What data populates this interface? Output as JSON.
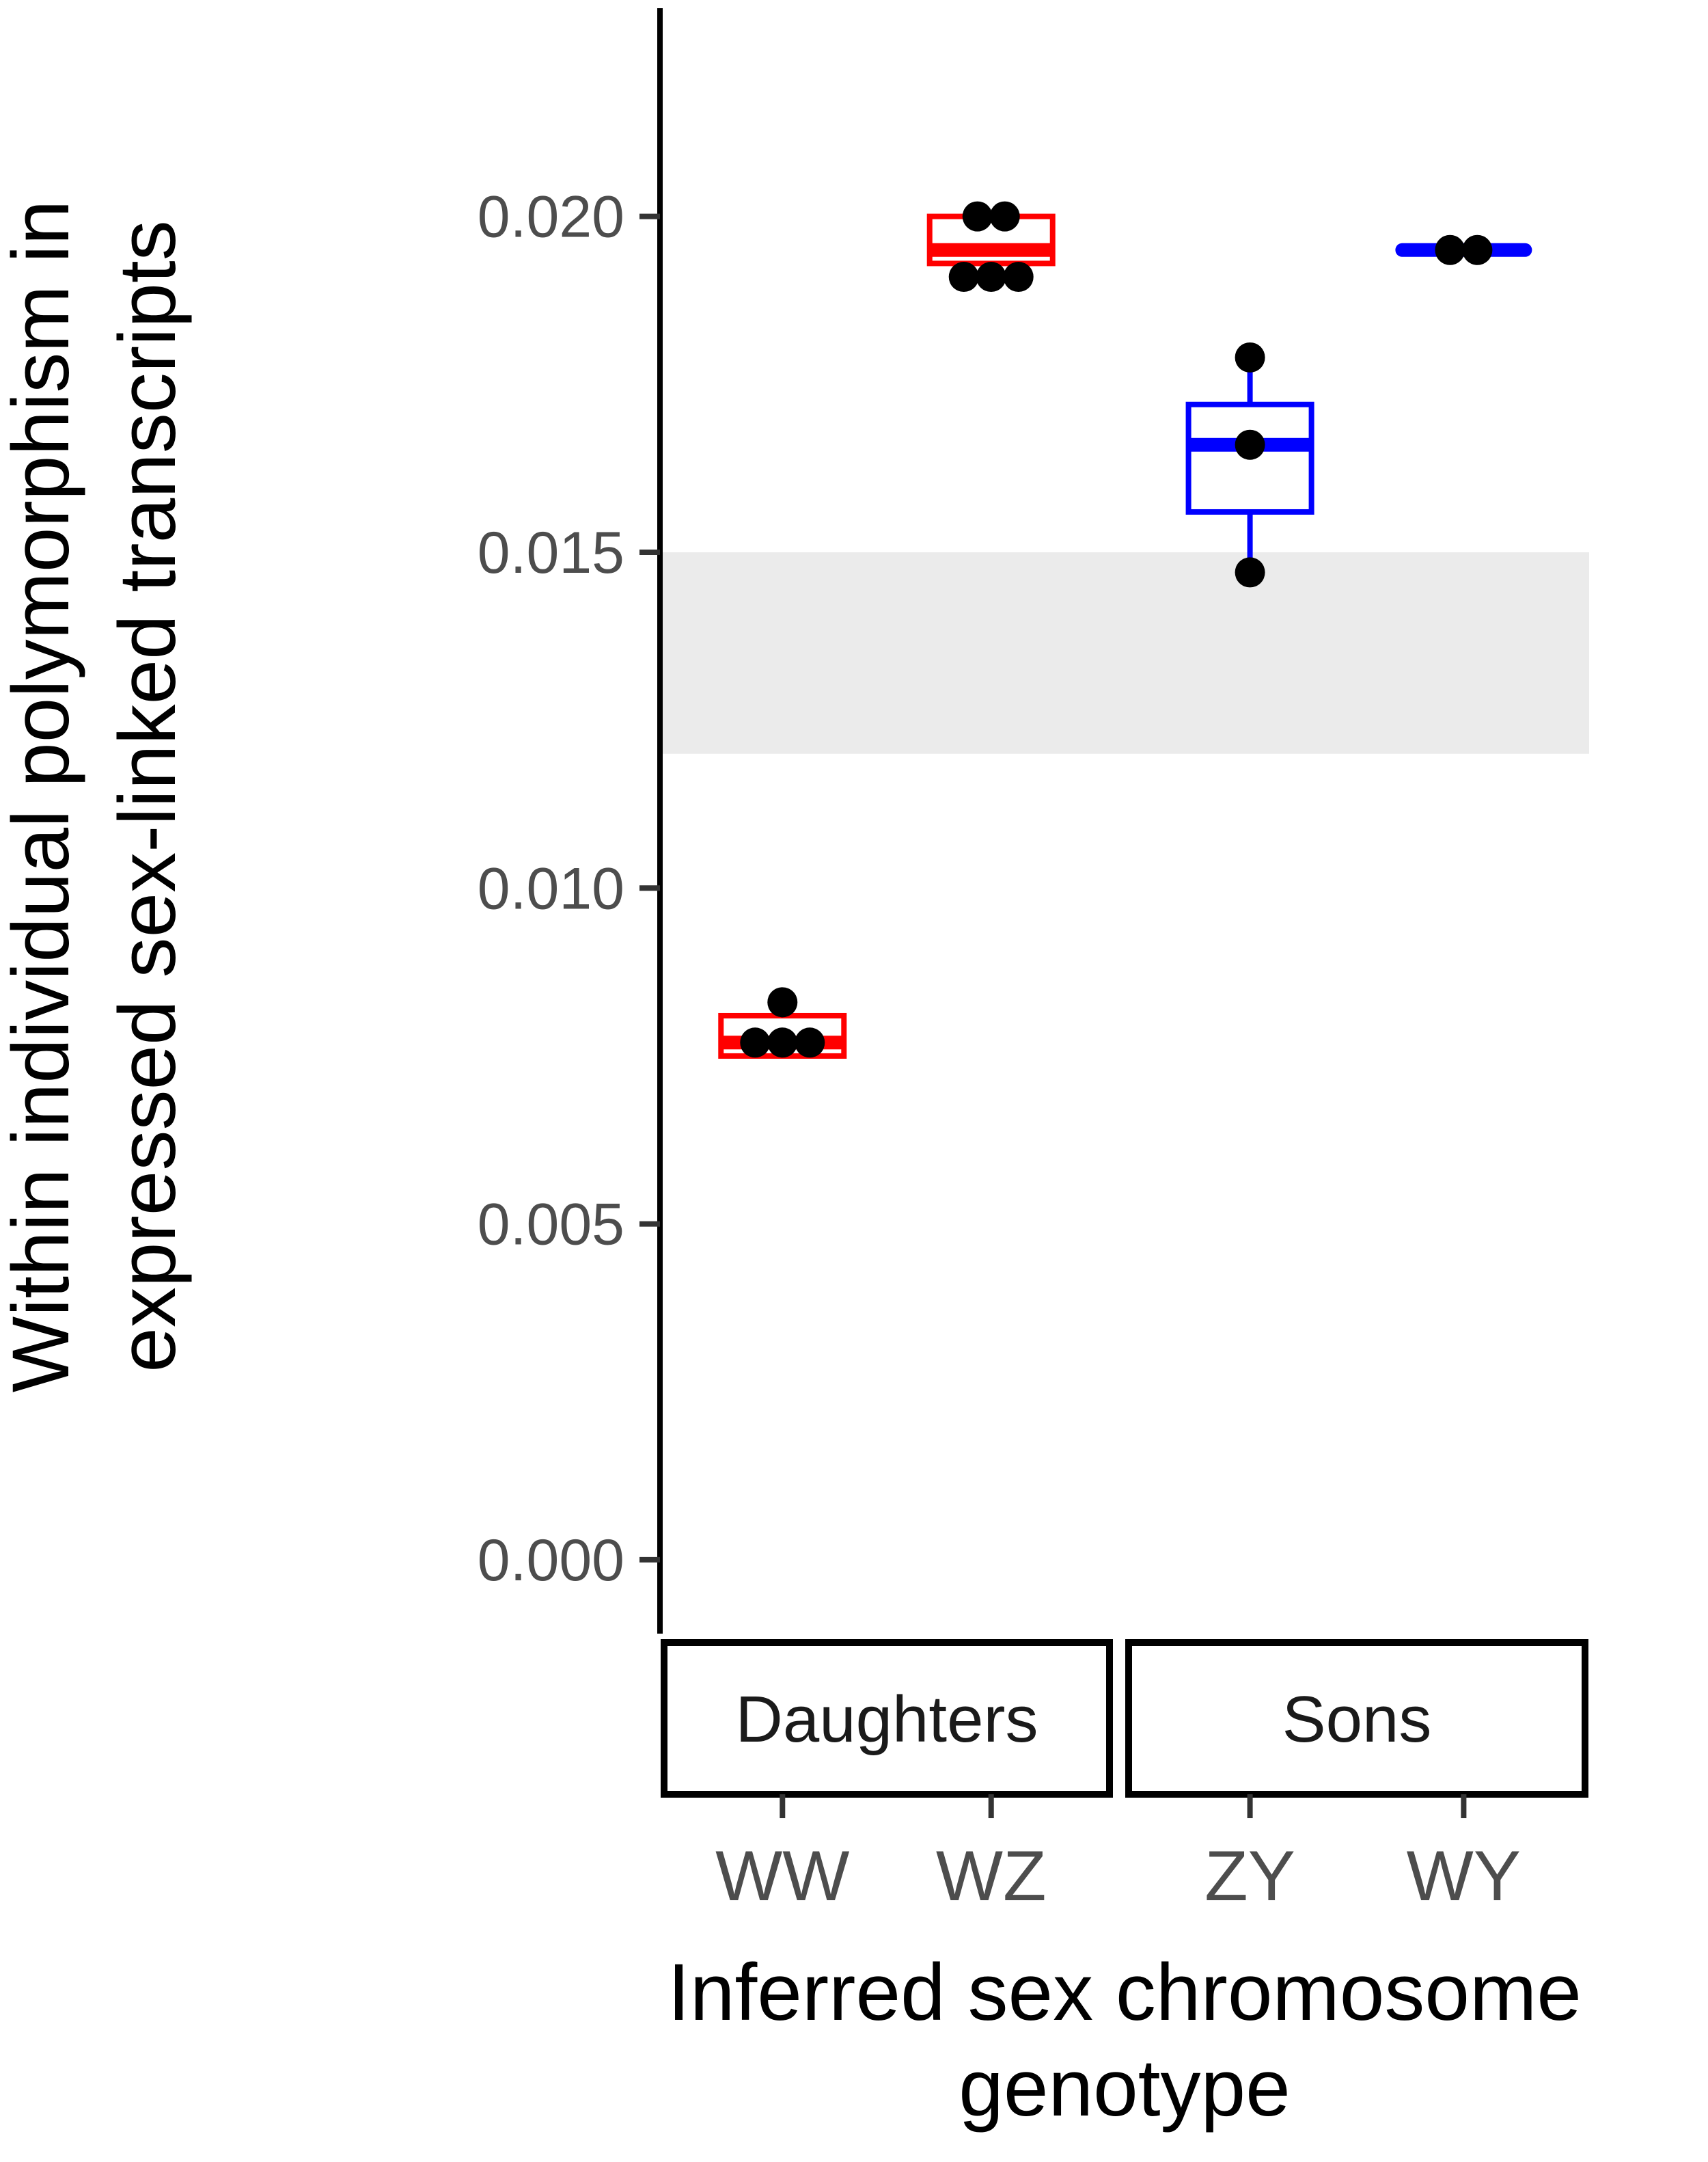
{
  "chart_data": {
    "type": "boxplot",
    "ylabel_lines": [
      "Within individual polymorphism in",
      "expressed sex-linked transcripts"
    ],
    "xlabel_lines": [
      "Inferred sex chromosome",
      "genotype"
    ],
    "ylim": [
      -0.0011,
      0.0231
    ],
    "yticks": [
      0.0,
      0.005,
      0.01,
      0.015,
      0.02
    ],
    "ytick_labels": [
      "0.000",
      "0.005",
      "0.010",
      "0.015",
      "0.020"
    ],
    "shaded_band": {
      "ymin": 0.012,
      "ymax": 0.015,
      "color": "#ebebeb"
    },
    "panels": [
      {
        "label": "Daughters",
        "categories": [
          {
            "name": "WW",
            "color": "#ff0000",
            "q1": 0.0075,
            "median": 0.0077,
            "q3": 0.0081,
            "whisker_low": 0.0075,
            "whisker_high": 0.0081,
            "points": [
              0.0077,
              0.0077,
              0.0077,
              0.0083
            ]
          },
          {
            "name": "WZ",
            "color": "#ff0000",
            "q1": 0.0193,
            "median": 0.0195,
            "q3": 0.02,
            "whisker_low": 0.0189,
            "whisker_high": 0.02,
            "points": [
              0.0191,
              0.0191,
              0.0191,
              0.02,
              0.02
            ]
          }
        ]
      },
      {
        "label": "Sons",
        "categories": [
          {
            "name": "ZY",
            "color": "#0000ff",
            "q1": 0.0156,
            "median": 0.0166,
            "q3": 0.0172,
            "whisker_low": 0.0147,
            "whisker_high": 0.0179,
            "points": [
              0.0147,
              0.0166,
              0.0179
            ]
          },
          {
            "name": "WY",
            "color": "#0000ff",
            "q1": 0.0195,
            "median": 0.0195,
            "q3": 0.0195,
            "whisker_low": 0.0195,
            "whisker_high": 0.0195,
            "points": [
              0.0195,
              0.0195
            ]
          }
        ]
      }
    ],
    "point_color": "#000000",
    "grid": false,
    "legend": "none"
  }
}
